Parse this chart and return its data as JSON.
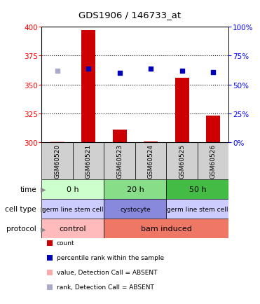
{
  "title": "GDS1906 / 146733_at",
  "samples": [
    "GSM60520",
    "GSM60521",
    "GSM60523",
    "GSM60524",
    "GSM60525",
    "GSM60526"
  ],
  "count_values": [
    301,
    397,
    311,
    301,
    356,
    323
  ],
  "count_absent": [
    true,
    false,
    false,
    false,
    false,
    false
  ],
  "rank_values": [
    362,
    364,
    360,
    364,
    362,
    361
  ],
  "rank_absent": [
    true,
    false,
    false,
    false,
    false,
    false
  ],
  "ylim_left": [
    300,
    400
  ],
  "ylim_right": [
    0,
    100
  ],
  "yticks_left": [
    300,
    325,
    350,
    375,
    400
  ],
  "yticks_right": [
    0,
    25,
    50,
    75,
    100
  ],
  "count_color": "#cc0000",
  "count_absent_color": "#ffaaaa",
  "rank_color": "#0000bb",
  "rank_absent_color": "#aaaacc",
  "bar_width": 0.45,
  "time_labels": [
    "0 h",
    "20 h",
    "50 h"
  ],
  "time_colors": [
    "#ccffcc",
    "#88dd88",
    "#44bb44"
  ],
  "cell_type_labels": [
    "germ line stem cell",
    "cystocyte",
    "germ line stem cell"
  ],
  "cell_type_colors": [
    "#ccccff",
    "#8888dd",
    "#ccccff"
  ],
  "protocol_labels": [
    "control",
    "bam induced"
  ],
  "protocol_colors": [
    "#ffbbbb",
    "#ee7766"
  ],
  "grid_yticks": [
    325,
    350,
    375
  ],
  "legend_items": [
    [
      "#cc0000",
      "count"
    ],
    [
      "#0000bb",
      "percentile rank within the sample"
    ],
    [
      "#ffaaaa",
      "value, Detection Call = ABSENT"
    ],
    [
      "#aaaacc",
      "rank, Detection Call = ABSENT"
    ]
  ]
}
